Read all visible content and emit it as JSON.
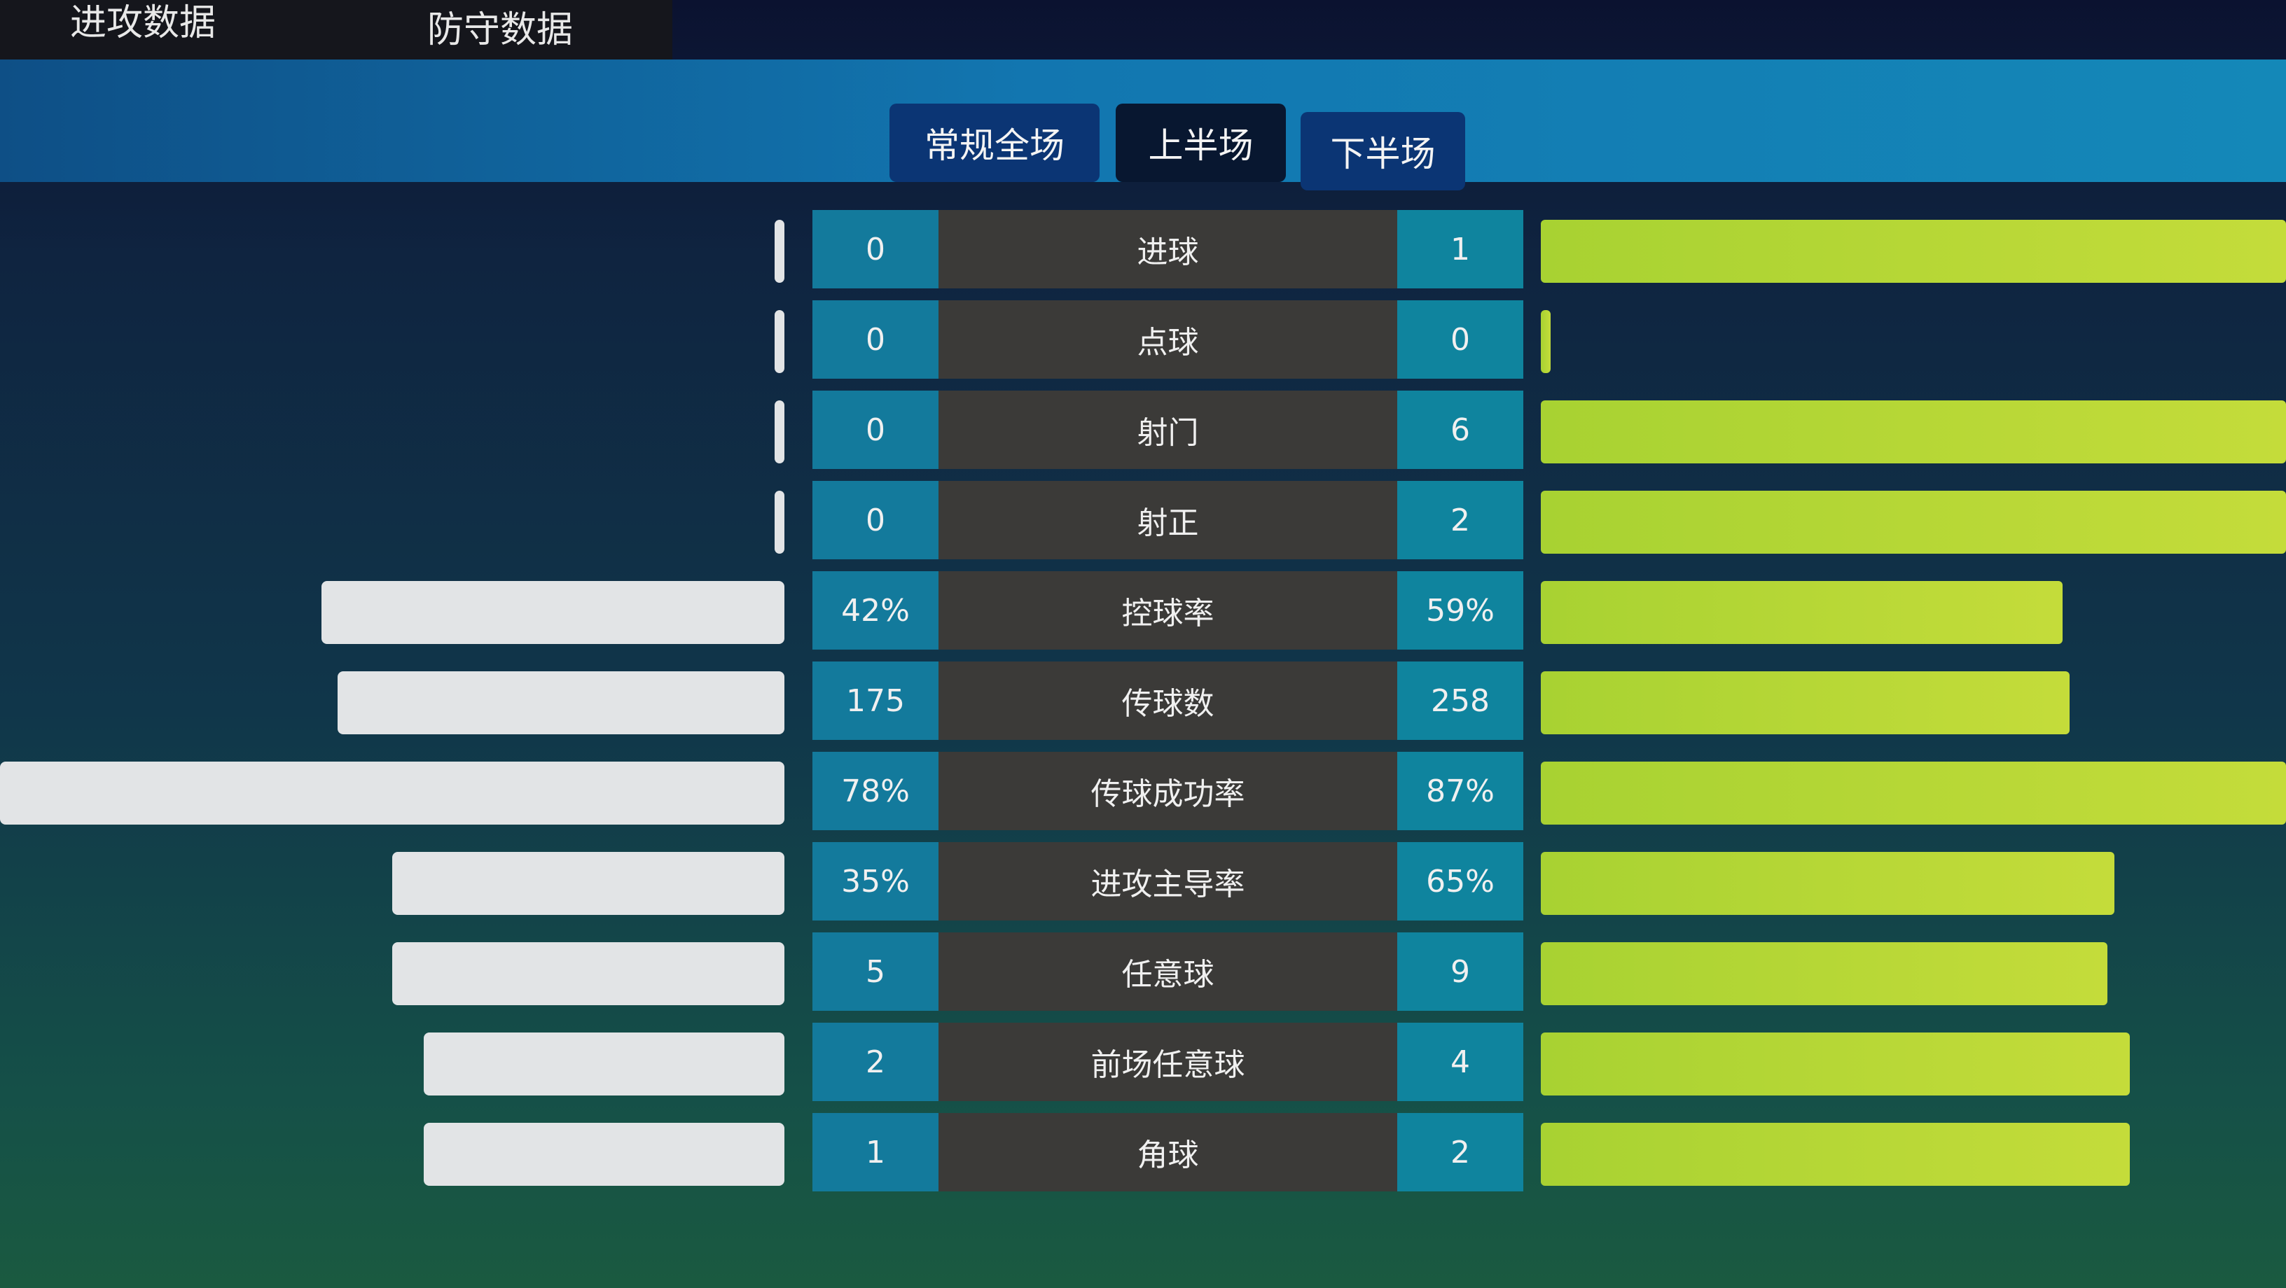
{
  "top_tabs": [
    {
      "label": "进攻数据"
    },
    {
      "label": "防守数据"
    }
  ],
  "segments": [
    {
      "label": "常规全场",
      "active": false
    },
    {
      "label": "上半场",
      "active": true
    },
    {
      "label": "下半场",
      "active": false
    }
  ],
  "colors": {
    "left_bar": "#e2e4e6",
    "right_bar": "#a8d232",
    "value_cell": "#137a9c",
    "label_cell": "#3b3a38"
  },
  "stats": [
    {
      "label": "进球",
      "left": "0",
      "right": "1",
      "left_fill": 0.01,
      "right_fill": 1.0
    },
    {
      "label": "点球",
      "left": "0",
      "right": "0",
      "left_fill": 0.01,
      "right_fill": 0.01
    },
    {
      "label": "射门",
      "left": "0",
      "right": "6",
      "left_fill": 0.01,
      "right_fill": 1.0
    },
    {
      "label": "射正",
      "left": "0",
      "right": "2",
      "left_fill": 0.01,
      "right_fill": 1.0
    },
    {
      "label": "控球率",
      "left": "42%",
      "right": "59%",
      "left_fill": 0.59,
      "right_fill": 0.7
    },
    {
      "label": "传球数",
      "left": "175",
      "right": "258",
      "left_fill": 0.57,
      "right_fill": 0.71
    },
    {
      "label": "传球成功率",
      "left": "78%",
      "right": "87%",
      "left_fill": 1.0,
      "right_fill": 1.0
    },
    {
      "label": "进攻主导率",
      "left": "35%",
      "right": "65%",
      "left_fill": 0.5,
      "right_fill": 0.77
    },
    {
      "label": "任意球",
      "left": "5",
      "right": "9",
      "left_fill": 0.5,
      "right_fill": 0.76
    },
    {
      "label": "前场任意球",
      "left": "2",
      "right": "4",
      "left_fill": 0.46,
      "right_fill": 0.79
    },
    {
      "label": "角球",
      "left": "1",
      "right": "2",
      "left_fill": 0.46,
      "right_fill": 0.79
    }
  ]
}
